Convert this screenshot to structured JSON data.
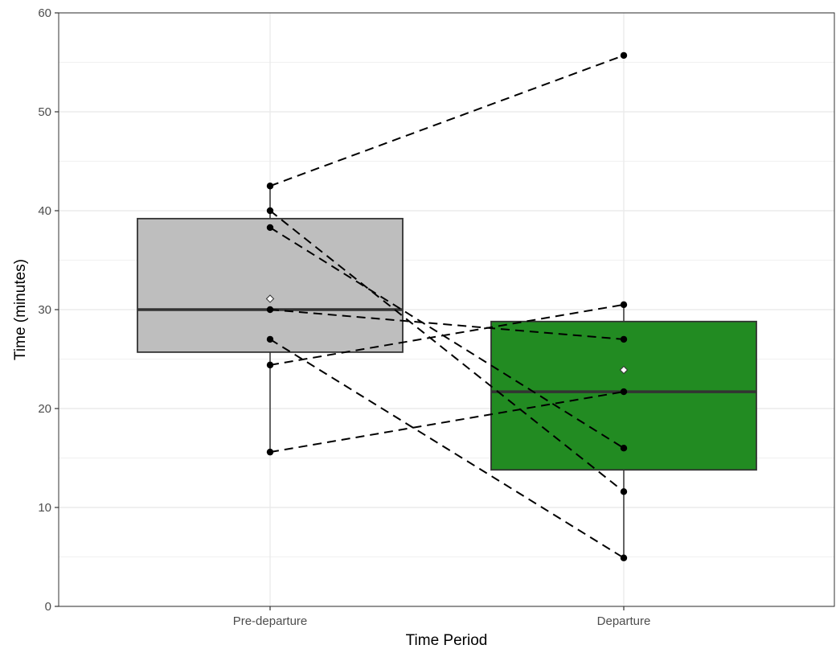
{
  "chart_data": {
    "type": "boxplot",
    "xlabel": "Time Period",
    "ylabel": "Time (minutes)",
    "ylim": [
      0,
      60
    ],
    "yticks": [
      0,
      10,
      20,
      30,
      40,
      50,
      60
    ],
    "categories": [
      "Pre-departure",
      "Departure"
    ],
    "grid": true,
    "boxes": [
      {
        "category": "Pre-departure",
        "q1": 25.7,
        "median": 30.0,
        "q3": 39.2,
        "whisker_low": 15.6,
        "whisker_high": 42.5,
        "mean": 31.1,
        "fill": "#bebebe"
      },
      {
        "category": "Departure",
        "q1": 13.8,
        "median": 21.7,
        "q3": 28.8,
        "whisker_low": 4.9,
        "whisker_high": 30.5,
        "mean": 23.9,
        "fill": "#228b22"
      }
    ],
    "pairs": [
      {
        "pre": 42.5,
        "post": 55.7
      },
      {
        "pre": 40.0,
        "post": 11.6
      },
      {
        "pre": 38.3,
        "post": 16.0
      },
      {
        "pre": 30.0,
        "post": 27.0
      },
      {
        "pre": 27.0,
        "post": 4.9
      },
      {
        "pre": 24.4,
        "post": 30.5
      },
      {
        "pre": 15.6,
        "post": 21.7
      }
    ]
  },
  "colors": {
    "pre_box": "#bebebe",
    "post_box": "#228b22",
    "grid": "#ebebeb",
    "box_border": "#333333",
    "points": "#000000",
    "mean_marker": "#ffffff"
  }
}
